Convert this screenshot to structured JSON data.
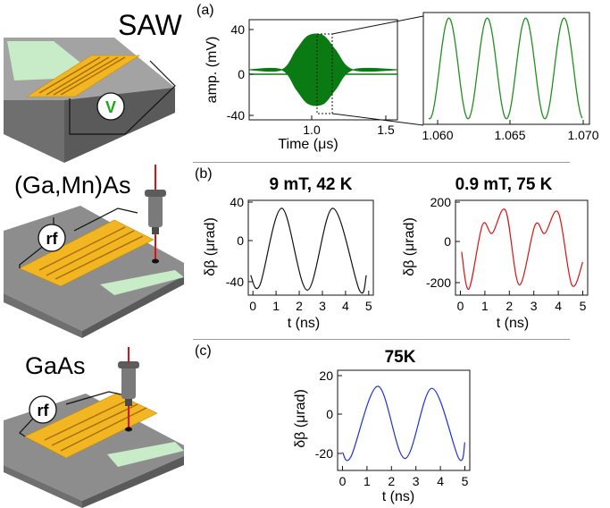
{
  "labels": {
    "saw": "SAW",
    "gamnas": "(Ga,Mn)As",
    "gaas": "GaAs",
    "voltmeter": "V",
    "rf_top": "rf",
    "rf_bottom": "rf"
  },
  "panels": {
    "a": {
      "letter": "(a)",
      "main": {
        "xlabel": "Time (μs)",
        "ylabel": "amp. (mV)",
        "xticks": [
          "1.0",
          "1.5"
        ],
        "yticks": [
          "40",
          "0",
          "-40"
        ]
      },
      "zoom": {
        "xticks": [
          "1.060",
          "1.065",
          "1.070"
        ]
      }
    },
    "b": {
      "letter": "(b)",
      "left": {
        "title": "9 mT, 42 K",
        "ylabel": "δβ (μrad)",
        "xlabel": "t (ns)",
        "xticks": [
          "0",
          "1",
          "2",
          "3",
          "4",
          "5"
        ],
        "yticks": [
          "40",
          "0",
          "-40"
        ]
      },
      "right": {
        "title": "0.9 mT, 75 K",
        "ylabel": "δβ (μrad)",
        "xlabel": "t (ns)",
        "xticks": [
          "0",
          "1",
          "2",
          "3",
          "4",
          "5"
        ],
        "yticks": [
          "200",
          "0",
          "-200"
        ]
      }
    },
    "c": {
      "letter": "(c)",
      "plot": {
        "title": "75K",
        "ylabel": "δβ (μrad)",
        "xlabel": "t (ns)",
        "xticks": [
          "0",
          "1",
          "2",
          "3",
          "4",
          "5"
        ],
        "yticks": [
          "20",
          "0",
          "-20"
        ]
      }
    }
  },
  "colors": {
    "saw_burst": "#0a7a12",
    "zoom_trace": "#1f8f1f",
    "trace_b_left": "#111111",
    "trace_b_right": "#e01010",
    "trace_c": "#1c2fe0",
    "laser": "#e01010",
    "gold_electrode": "#f2b623",
    "substrate_top": "#9e9e9e",
    "film_green": "#c8ecc8"
  },
  "chart_data": [
    {
      "type": "line",
      "panel": "a-main",
      "description": "SAW burst envelope, ±35 mV carrier around t≈1.05 μs",
      "xlim": [
        0.6,
        1.6
      ],
      "ylim": [
        -50,
        50
      ],
      "xlabel": "Time (μs)",
      "ylabel": "amp. (mV)",
      "envelope": {
        "x": [
          0.6,
          0.82,
          0.92,
          1.0,
          1.1,
          1.18,
          1.3,
          1.6
        ],
        "y": [
          0,
          0,
          20,
          34,
          34,
          20,
          0,
          0
        ]
      }
    },
    {
      "type": "line",
      "panel": "a-zoom",
      "description": "Zoomed SAW carrier",
      "xlim": [
        1.06,
        1.07
      ],
      "ylim": [
        -50,
        50
      ],
      "series": [
        {
          "amplitude": 45,
          "periods_in_window": 4
        }
      ]
    },
    {
      "type": "line",
      "panel": "b-left",
      "title": "9 mT, 42 K",
      "xlim": [
        -0.2,
        5.2
      ],
      "ylim": [
        -55,
        40
      ],
      "xlabel": "t (ns)",
      "ylabel": "δβ (μrad)",
      "series": [
        {
          "x": [
            -0.1,
            0.3,
            1.25,
            2.35,
            3.45,
            4.6,
            4.9
          ],
          "y": [
            -35,
            -45,
            32,
            -50,
            32,
            -50,
            -35
          ]
        }
      ]
    },
    {
      "type": "line",
      "panel": "b-right",
      "title": "0.9 mT, 75 K",
      "xlim": [
        -0.2,
        5.2
      ],
      "ylim": [
        -260,
        200
      ],
      "xlabel": "t (ns)",
      "ylabel": "δβ (μrad)",
      "series": [
        {
          "x": [
            0.05,
            0.35,
            0.9,
            1.3,
            1.85,
            2.4,
            3.05,
            3.45,
            4.0,
            4.55,
            5.0
          ],
          "y": [
            -50,
            -230,
            80,
            40,
            150,
            -210,
            80,
            40,
            140,
            -210,
            -100
          ]
        }
      ]
    },
    {
      "type": "line",
      "panel": "c",
      "title": "75K",
      "xlim": [
        -0.2,
        5.2
      ],
      "ylim": [
        -25,
        25
      ],
      "xlabel": "t (ns)",
      "ylabel": "δβ (μrad)",
      "series": [
        {
          "x": [
            0,
            0.35,
            1.45,
            2.55,
            3.65,
            4.75,
            5.0
          ],
          "y": [
            -16,
            -18,
            17,
            -19,
            16,
            -19,
            -11
          ]
        }
      ]
    }
  ]
}
